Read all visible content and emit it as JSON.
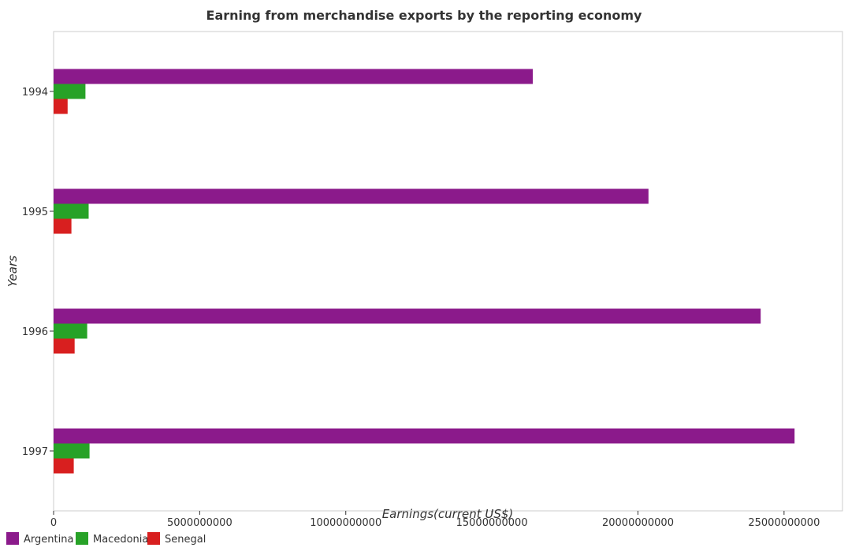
{
  "chart_data": {
    "type": "bar",
    "orientation": "horizontal",
    "title": "Earning from merchandise exports by the reporting economy",
    "xlabel": "Earnings(current US$)",
    "ylabel": "Years",
    "categories": [
      "1994",
      "1995",
      "1996",
      "1997"
    ],
    "xlim": [
      0,
      27000000000
    ],
    "x_ticks": [
      0,
      5000000000,
      10000000000,
      15000000000,
      20000000000,
      25000000000
    ],
    "x_tick_labels": [
      "0",
      "5000000000",
      "10000000000",
      "15000000000",
      "20000000000",
      "25000000000"
    ],
    "grid": false,
    "legend_position": "bottom-left",
    "series": [
      {
        "name": "Argentina",
        "color": "#8B1A8B",
        "values": [
          16400000000,
          20360000000,
          24200000000,
          25360000000
        ]
      },
      {
        "name": "Macedonia",
        "color": "#27A227",
        "values": [
          1090000000,
          1200000000,
          1150000000,
          1230000000
        ]
      },
      {
        "name": "Senegal",
        "color": "#D81F1F",
        "values": [
          480000000,
          610000000,
          720000000,
          690000000
        ]
      }
    ]
  }
}
